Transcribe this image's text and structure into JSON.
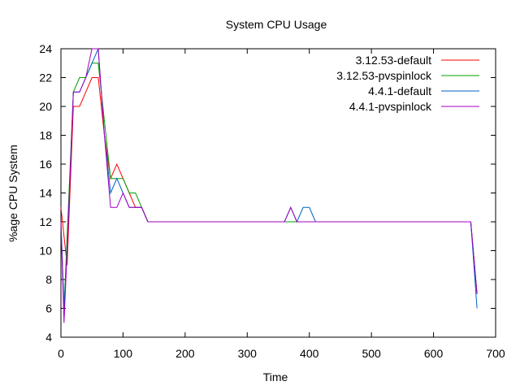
{
  "chart_data": {
    "type": "line",
    "title": "System CPU Usage",
    "xlabel": "Time",
    "ylabel": "%age CPU System",
    "xlim": [
      0,
      700
    ],
    "ylim": [
      4,
      24
    ],
    "xticks": [
      0,
      100,
      200,
      300,
      400,
      500,
      600,
      700
    ],
    "yticks": [
      4,
      6,
      8,
      10,
      12,
      14,
      16,
      18,
      20,
      22,
      24
    ],
    "grid": false,
    "legend_position": "top-right",
    "series": [
      {
        "name": "3.12.53-default",
        "color": "#ff0000",
        "points": [
          [
            0,
            13
          ],
          [
            5,
            11
          ],
          [
            10,
            9
          ],
          [
            20,
            20
          ],
          [
            30,
            20
          ],
          [
            40,
            21
          ],
          [
            50,
            22
          ],
          [
            60,
            22
          ],
          [
            70,
            18
          ],
          [
            80,
            15
          ],
          [
            90,
            16
          ],
          [
            100,
            15
          ],
          [
            110,
            14
          ],
          [
            120,
            13
          ],
          [
            130,
            13
          ],
          [
            140,
            12
          ],
          [
            370,
            12
          ],
          [
            660,
            12
          ],
          [
            670,
            7
          ]
        ]
      },
      {
        "name": "3.12.53-pvspinlock",
        "color": "#00a000",
        "points": [
          [
            0,
            12
          ],
          [
            5,
            6
          ],
          [
            10,
            11
          ],
          [
            20,
            21
          ],
          [
            30,
            22
          ],
          [
            40,
            22
          ],
          [
            50,
            23
          ],
          [
            60,
            23
          ],
          [
            70,
            19
          ],
          [
            80,
            15
          ],
          [
            90,
            15
          ],
          [
            100,
            15
          ],
          [
            110,
            14
          ],
          [
            120,
            14
          ],
          [
            130,
            13
          ],
          [
            140,
            12
          ],
          [
            370,
            12
          ],
          [
            660,
            12
          ],
          [
            670,
            7
          ]
        ]
      },
      {
        "name": "4.4.1-default",
        "color": "#0060c0",
        "points": [
          [
            0,
            12
          ],
          [
            5,
            6
          ],
          [
            10,
            10
          ],
          [
            20,
            21
          ],
          [
            30,
            21
          ],
          [
            40,
            22
          ],
          [
            50,
            23
          ],
          [
            60,
            24
          ],
          [
            70,
            18
          ],
          [
            80,
            14
          ],
          [
            90,
            15
          ],
          [
            100,
            14
          ],
          [
            110,
            13
          ],
          [
            120,
            13
          ],
          [
            130,
            13
          ],
          [
            140,
            12
          ],
          [
            360,
            12
          ],
          [
            370,
            13
          ],
          [
            380,
            12
          ],
          [
            390,
            13
          ],
          [
            400,
            13
          ],
          [
            410,
            12
          ],
          [
            660,
            12
          ],
          [
            670,
            6
          ]
        ]
      },
      {
        "name": "4.4.1-pvspinlock",
        "color": "#a000c0",
        "points": [
          [
            0,
            12
          ],
          [
            5,
            5
          ],
          [
            10,
            10
          ],
          [
            20,
            21
          ],
          [
            30,
            21
          ],
          [
            40,
            22
          ],
          [
            50,
            24
          ],
          [
            60,
            24
          ],
          [
            70,
            18
          ],
          [
            80,
            13
          ],
          [
            90,
            13
          ],
          [
            100,
            14
          ],
          [
            110,
            13
          ],
          [
            120,
            13
          ],
          [
            130,
            13
          ],
          [
            140,
            12
          ],
          [
            360,
            12
          ],
          [
            370,
            13
          ],
          [
            380,
            12
          ],
          [
            390,
            12
          ],
          [
            400,
            12
          ],
          [
            660,
            12
          ],
          [
            670,
            7
          ]
        ]
      }
    ]
  }
}
